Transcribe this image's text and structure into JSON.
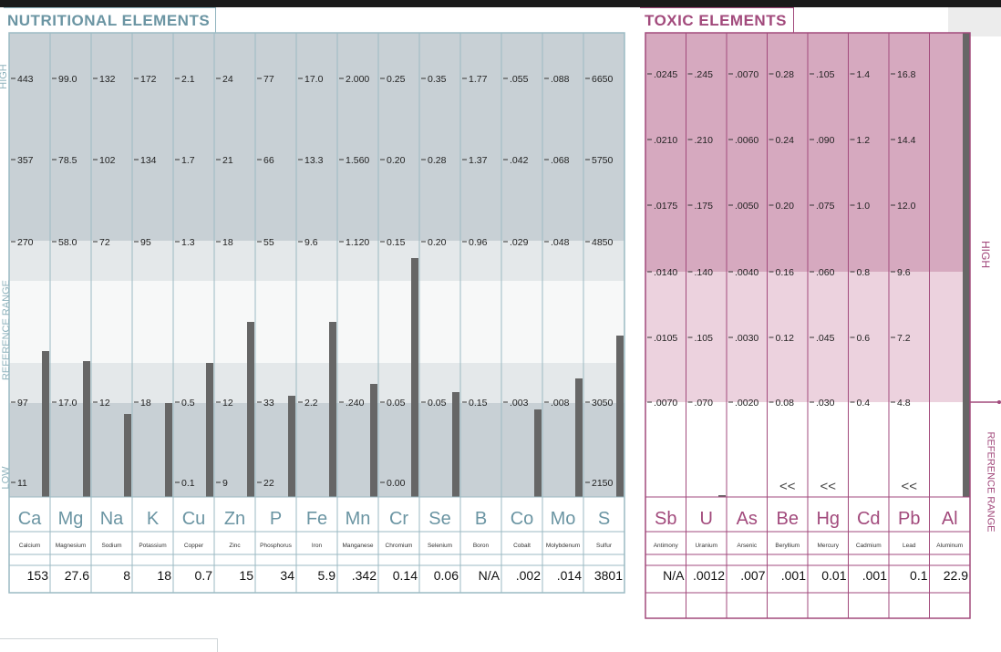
{
  "nutritional": {
    "title": "NUTRITIONAL ELEMENTS",
    "side_labels": {
      "high": "HIGH",
      "reference": "REFERENCE  RANGE",
      "low": "LOW"
    },
    "columns": [
      {
        "symbol": "Ca",
        "name": "Calcium",
        "result": "153",
        "ticks": [
          "443",
          "357",
          "270",
          "97",
          "11"
        ]
      },
      {
        "symbol": "Mg",
        "name": "Magnesium",
        "result": "27.6",
        "ticks": [
          "99.0",
          "78.5",
          "58.0",
          "17.0"
        ]
      },
      {
        "symbol": "Na",
        "name": "Sodium",
        "result": "8",
        "ticks": [
          "132",
          "102",
          "72",
          "12"
        ]
      },
      {
        "symbol": "K",
        "name": "Potassium",
        "result": "18",
        "ticks": [
          "172",
          "134",
          "95",
          "18"
        ]
      },
      {
        "symbol": "Cu",
        "name": "Copper",
        "result": "0.7",
        "ticks": [
          "2.1",
          "1.7",
          "1.3",
          "0.5",
          "0.1"
        ]
      },
      {
        "symbol": "Zn",
        "name": "Zinc",
        "result": "15",
        "ticks": [
          "24",
          "21",
          "18",
          "12",
          "9"
        ]
      },
      {
        "symbol": "P",
        "name": "Phosphorus",
        "result": "34",
        "ticks": [
          "77",
          "66",
          "55",
          "33",
          "22"
        ]
      },
      {
        "symbol": "Fe",
        "name": "Iron",
        "result": "5.9",
        "ticks": [
          "17.0",
          "13.3",
          "9.6",
          "2.2"
        ]
      },
      {
        "symbol": "Mn",
        "name": "Manganese",
        "result": ".342",
        "ticks": [
          "2.000",
          "1.560",
          "1.120",
          ".240"
        ]
      },
      {
        "symbol": "Cr",
        "name": "Chromium",
        "result": "0.14",
        "ticks": [
          "0.25",
          "0.20",
          "0.15",
          "0.05",
          "0.00"
        ]
      },
      {
        "symbol": "Se",
        "name": "Selenium",
        "result": "0.06",
        "ticks": [
          "0.35",
          "0.28",
          "0.20",
          "0.05"
        ]
      },
      {
        "symbol": "B",
        "name": "Boron",
        "result": "N/A",
        "ticks": [
          "1.77",
          "1.37",
          "0.96",
          "0.15"
        ]
      },
      {
        "symbol": "Co",
        "name": "Cobalt",
        "result": ".002",
        "ticks": [
          ".055",
          ".042",
          ".029",
          ".003"
        ]
      },
      {
        "symbol": "Mo",
        "name": "Molybdenum",
        "result": ".014",
        "ticks": [
          ".088",
          ".068",
          ".048",
          ".008"
        ]
      },
      {
        "symbol": "S",
        "name": "Sulfur",
        "result": "3801",
        "ticks": [
          "6650",
          "5750",
          "4850",
          "3050",
          "2150"
        ]
      }
    ]
  },
  "toxic": {
    "title": "TOXIC ELEMENTS",
    "side_labels": {
      "high": "HIGH",
      "reference": "REFERENCE RANGE"
    },
    "columns": [
      {
        "symbol": "Sb",
        "name": "Antimony",
        "result": "N/A",
        "ticks": [
          ".0245",
          ".0210",
          ".0175",
          ".0140",
          ".0105",
          ".0070"
        ],
        "below_marker": ""
      },
      {
        "symbol": "U",
        "name": "Uranium",
        "result": ".0012",
        "ticks": [
          ".245",
          ".210",
          ".175",
          ".140",
          ".105",
          ".070"
        ],
        "below_marker": ""
      },
      {
        "symbol": "As",
        "name": "Arsenic",
        "result": ".007",
        "ticks": [
          ".0070",
          ".0060",
          ".0050",
          ".0040",
          ".0030",
          ".0020"
        ],
        "below_marker": ""
      },
      {
        "symbol": "Be",
        "name": "Beryllium",
        "result": ".001",
        "ticks": [
          "0.28",
          "0.24",
          "0.20",
          "0.16",
          "0.12",
          "0.08"
        ],
        "below_marker": "<<"
      },
      {
        "symbol": "Hg",
        "name": "Mercury",
        "result": "0.01",
        "ticks": [
          ".105",
          ".090",
          ".075",
          ".060",
          ".045",
          ".030"
        ],
        "below_marker": "<<"
      },
      {
        "symbol": "Cd",
        "name": "Cadmium",
        "result": ".001",
        "ticks": [
          "1.4",
          "1.2",
          "1.0",
          "0.8",
          "0.6",
          "0.4"
        ],
        "below_marker": ""
      },
      {
        "symbol": "Pb",
        "name": "Lead",
        "result": "0.1",
        "ticks": [
          "16.8",
          "14.4",
          "12.0",
          "9.6",
          "7.2",
          "4.8"
        ],
        "below_marker": "<<"
      },
      {
        "symbol": "Al",
        "name": "Aluminum",
        "result": "22.9",
        "ticks": [],
        "below_marker": ""
      }
    ]
  },
  "chart_data": [
    {
      "type": "bar",
      "title": "NUTRITIONAL ELEMENTS",
      "categories": [
        "Ca",
        "Mg",
        "Na",
        "K",
        "Cu",
        "Zn",
        "P",
        "Fe",
        "Mn",
        "Cr",
        "Se",
        "B",
        "Co",
        "Mo",
        "S"
      ],
      "values": [
        153,
        27.6,
        8,
        18,
        0.7,
        15,
        34,
        5.9,
        0.342,
        0.14,
        0.06,
        null,
        0.002,
        0.014,
        3801
      ]
    },
    {
      "type": "bar",
      "title": "TOXIC ELEMENTS",
      "categories": [
        "Sb",
        "U",
        "As",
        "Be",
        "Hg",
        "Cd",
        "Pb",
        "Al"
      ],
      "values": [
        null,
        0.0012,
        0.007,
        0.001,
        0.01,
        0.001,
        0.1,
        22.9
      ]
    }
  ],
  "colors": {
    "nut_accent": "#6b95a3",
    "nut_high": "#c8d0d5",
    "nut_low": "#c8d0d5",
    "nut_ref": "#f7f8f8",
    "tox_accent": "#a24a7c",
    "tox_high": "#d6a9bf",
    "tox_ref": "#ecd2de",
    "bar": "#666666"
  }
}
